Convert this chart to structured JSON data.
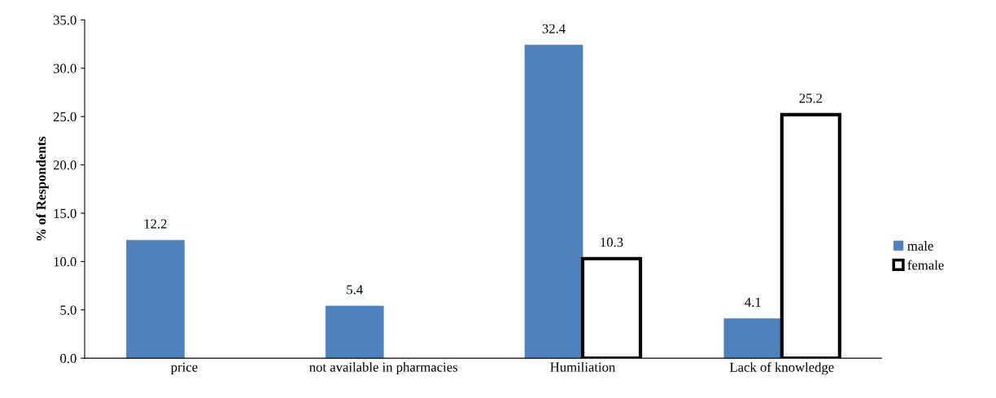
{
  "chart_data": {
    "type": "bar",
    "ylabel": "% of Respondents",
    "categories": [
      "price",
      "not available in pharmacies",
      "Humiliation",
      "Lack of knowledge"
    ],
    "series": [
      {
        "name": "male",
        "color": "#4f81bd",
        "values": [
          12.2,
          5.4,
          32.4,
          4.1
        ]
      },
      {
        "name": "female",
        "color": "#ffffff",
        "values": [
          null,
          null,
          10.3,
          25.2
        ]
      }
    ],
    "ylim": [
      0,
      35
    ],
    "yticks": [
      {
        "value": 0,
        "label": "0.0"
      },
      {
        "value": 5,
        "label": "5.0"
      },
      {
        "value": 10,
        "label": "10.0"
      },
      {
        "value": 15,
        "label": "15.0"
      },
      {
        "value": 20,
        "label": "20.0"
      },
      {
        "value": 25,
        "label": "25.0"
      },
      {
        "value": 30,
        "label": "30.0"
      },
      {
        "value": 35,
        "label": "35.0"
      }
    ],
    "data_labels": true,
    "grid": false,
    "legend": "right"
  }
}
